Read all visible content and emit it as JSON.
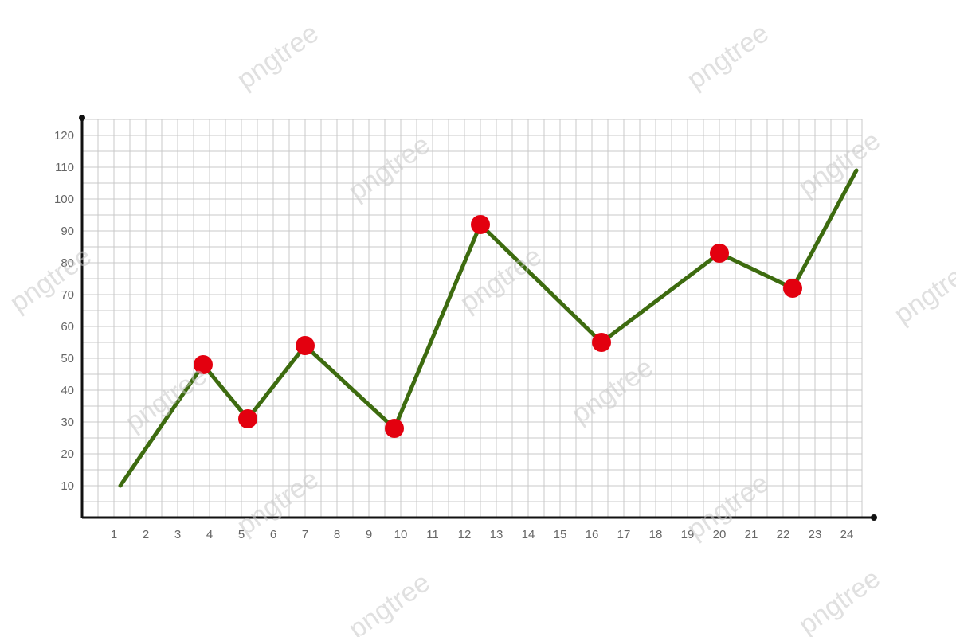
{
  "chart_data": {
    "type": "line",
    "title": "",
    "xlabel": "",
    "ylabel": "",
    "x_ticks": [
      "1",
      "2",
      "3",
      "4",
      "5",
      "6",
      "7",
      "8",
      "9",
      "10",
      "11",
      "12",
      "13",
      "14",
      "15",
      "16",
      "17",
      "18",
      "19",
      "20",
      "21",
      "22",
      "23",
      "24"
    ],
    "y_ticks": [
      "10",
      "20",
      "30",
      "40",
      "50",
      "60",
      "70",
      "80",
      "90",
      "100",
      "110",
      "120"
    ],
    "xlim": [
      0.5,
      25
    ],
    "ylim": [
      0,
      125
    ],
    "grid": true,
    "series": [
      {
        "points": [
          {
            "x": 1.2,
            "y": 10,
            "marker": false
          },
          {
            "x": 3.8,
            "y": 48,
            "marker": true
          },
          {
            "x": 5.2,
            "y": 31,
            "marker": true
          },
          {
            "x": 7.0,
            "y": 54,
            "marker": true
          },
          {
            "x": 9.8,
            "y": 28,
            "marker": true
          },
          {
            "x": 12.5,
            "y": 92,
            "marker": true
          },
          {
            "x": 16.3,
            "y": 55,
            "marker": true
          },
          {
            "x": 20.0,
            "y": 83,
            "marker": true
          },
          {
            "x": 22.3,
            "y": 72,
            "marker": true
          },
          {
            "x": 24.3,
            "y": 109,
            "marker": false
          }
        ]
      }
    ],
    "colors": {
      "line": "#3d6b0f",
      "marker": "#e3000f",
      "grid": "#c9c9c9",
      "axis": "#111111"
    }
  },
  "watermark": "pngtree"
}
